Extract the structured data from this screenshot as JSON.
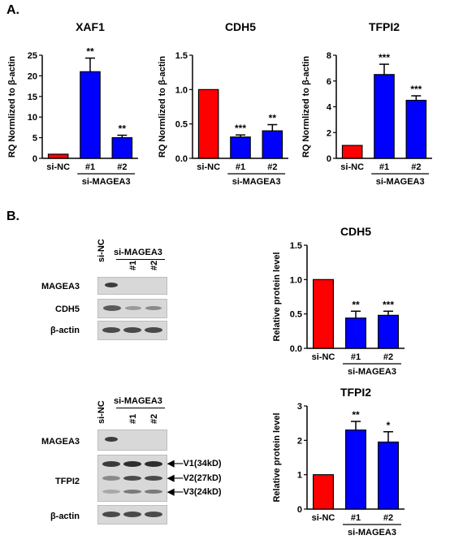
{
  "panels": {
    "a": "A.",
    "b": "B."
  },
  "chart_data": [
    {
      "type": "bar",
      "title": "XAF1",
      "ylabel": "RQ Normlized to β-actin",
      "ylim": [
        0,
        25
      ],
      "yticks": [
        0,
        5,
        10,
        15,
        20,
        25
      ],
      "categories": [
        "si-NC",
        "#1",
        "#2"
      ],
      "group_label": "si-MAGEA3",
      "values": [
        1,
        21,
        5
      ],
      "errors": [
        0,
        3.3,
        0.6
      ],
      "sig": [
        "",
        "**",
        "**"
      ],
      "colors": [
        "#ff0000",
        "#0000ff",
        "#0000ff"
      ]
    },
    {
      "type": "bar",
      "title": "CDH5",
      "ylabel": "RQ Normlized to β-actin",
      "ylim": [
        0,
        1.5
      ],
      "yticks": [
        "0.0",
        "0.5",
        "1.0",
        "1.5"
      ],
      "categories": [
        "si-NC",
        "#1",
        "#2"
      ],
      "group_label": "si-MAGEA3",
      "values": [
        1,
        0.31,
        0.4
      ],
      "errors": [
        0,
        0.03,
        0.09
      ],
      "sig": [
        "",
        "***",
        "**"
      ],
      "colors": [
        "#ff0000",
        "#0000ff",
        "#0000ff"
      ]
    },
    {
      "type": "bar",
      "title": "TFPI2",
      "ylabel": "RQ Normlized to β-actin",
      "ylim": [
        0,
        8
      ],
      "yticks": [
        0,
        2,
        4,
        6,
        8
      ],
      "categories": [
        "si-NC",
        "#1",
        "#2"
      ],
      "group_label": "si-MAGEA3",
      "values": [
        1,
        6.5,
        4.5
      ],
      "errors": [
        0,
        0.8,
        0.35
      ],
      "sig": [
        "",
        "***",
        "***"
      ],
      "colors": [
        "#ff0000",
        "#0000ff",
        "#0000ff"
      ]
    },
    {
      "type": "bar",
      "title": "CDH5",
      "ylabel": "Relative protein level",
      "ylim": [
        0,
        1.5
      ],
      "yticks": [
        "0.0",
        "0.5",
        "1.0",
        "1.5"
      ],
      "categories": [
        "si-NC",
        "#1",
        "#2"
      ],
      "group_label": "si-MAGEA3",
      "values": [
        1,
        0.44,
        0.48
      ],
      "errors": [
        0,
        0.1,
        0.06
      ],
      "sig": [
        "",
        "**",
        "***"
      ],
      "colors": [
        "#ff0000",
        "#0000ff",
        "#0000ff"
      ]
    },
    {
      "type": "bar",
      "title": "TFPI2",
      "ylabel": "Relative protein level",
      "ylim": [
        0,
        3
      ],
      "yticks": [
        0,
        1,
        2,
        3
      ],
      "categories": [
        "si-NC",
        "#1",
        "#2"
      ],
      "group_label": "si-MAGEA3",
      "values": [
        1,
        2.3,
        1.95
      ],
      "errors": [
        0,
        0.25,
        0.3
      ],
      "sig": [
        "",
        "**",
        "*"
      ],
      "colors": [
        "#ff0000",
        "#0000ff",
        "#0000ff"
      ]
    }
  ],
  "blots": {
    "top": {
      "lane_nc": "si-NC",
      "group": "si-MAGEA3",
      "lane1": "#1",
      "lane2": "#2",
      "rows": [
        "MAGEA3",
        "CDH5",
        "β-actin"
      ]
    },
    "bottom": {
      "lane_nc": "si-NC",
      "group": "si-MAGEA3",
      "lane1": "#1",
      "lane2": "#2",
      "rows": [
        "MAGEA3",
        "TFPI2",
        "β-actin"
      ],
      "variants": [
        "V1(34kD)",
        "V2(27kD)",
        "V3(24kD)"
      ]
    }
  }
}
